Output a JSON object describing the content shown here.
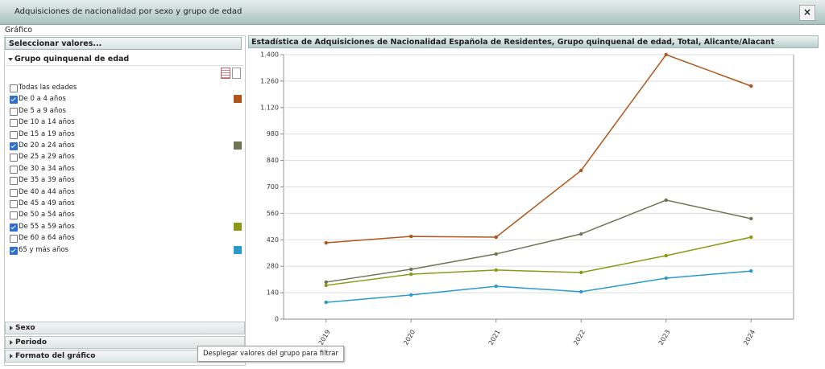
{
  "header": {
    "title": "Adquisiciones de nacionalidad por sexo y grupo de edad",
    "close": "×"
  },
  "section_label": "Gráfico",
  "panel": {
    "title": "Seleccionar valores...",
    "group": "Grupo quinquenal de edad",
    "items": [
      {
        "label": "Todas las edades",
        "checked": false
      },
      {
        "label": "De 0 a 4 años",
        "checked": true
      },
      {
        "label": "De 5 a 9 años",
        "checked": false
      },
      {
        "label": "De 10 a 14 años",
        "checked": false
      },
      {
        "label": "De 15 a 19 años",
        "checked": false
      },
      {
        "label": "De 20 a 24 años",
        "checked": true
      },
      {
        "label": "De 25 a 29 años",
        "checked": false
      },
      {
        "label": "De 30 a 34 años",
        "checked": false
      },
      {
        "label": "De 35 a 39 años",
        "checked": false
      },
      {
        "label": "De 40 a 44 años",
        "checked": false
      },
      {
        "label": "De 45 a 49 años",
        "checked": false
      },
      {
        "label": "De 50 a 54 años",
        "checked": false
      },
      {
        "label": "De 55 a 59 años",
        "checked": true
      },
      {
        "label": "De 60 a 64 años",
        "checked": false
      },
      {
        "label": "65 y más años",
        "checked": true
      }
    ],
    "collapsed": [
      "Sexo",
      "Periodo",
      "Formato del gráfico"
    ],
    "tooltip": "Desplegar valores del grupo para filtrar"
  },
  "chart_data": {
    "type": "line",
    "title": "Estadística de Adquisiciones de Nacionalidad Española de Residentes, Grupo quinquenal de edad, Total, Alicante/Alacant",
    "categories": [
      "2019",
      "2020",
      "2021",
      "2022",
      "2023",
      "2024"
    ],
    "series": [
      {
        "name": "De 0 a 4 años",
        "color": "#b0561a",
        "values": [
          404,
          438,
          434,
          787,
          1400,
          1234
        ]
      },
      {
        "name": "De 20 a 24 años",
        "color": "#6e7552",
        "values": [
          196,
          264,
          345,
          451,
          630,
          532
        ]
      },
      {
        "name": "De 55 a 59 años",
        "color": "#8a9a15",
        "values": [
          179,
          238,
          260,
          247,
          336,
          434
        ]
      },
      {
        "name": "65 y más años",
        "color": "#2a9ac9",
        "values": [
          89,
          128,
          174,
          145,
          217,
          255
        ]
      }
    ],
    "ylim": [
      0,
      1400
    ],
    "yticks": [
      0,
      140,
      280,
      420,
      560,
      700,
      840,
      980,
      {
        "value": 1120,
        "label": "1.120"
      },
      {
        "value": 1260,
        "label": "1.260"
      },
      {
        "value": 1400,
        "label": "1.400"
      }
    ],
    "grid": true
  }
}
